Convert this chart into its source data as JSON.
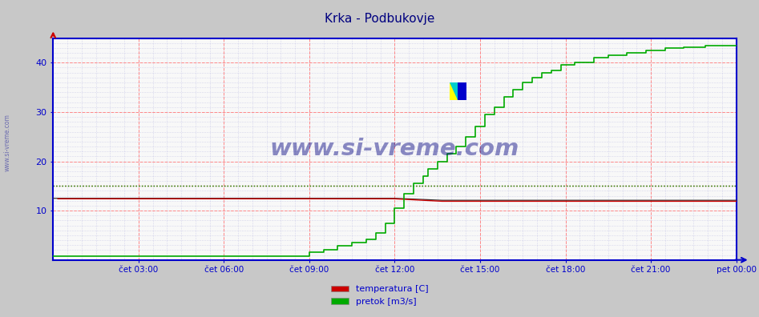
{
  "title": "Krka - Podbukovje",
  "title_color": "#000080",
  "title_fontsize": 11,
  "bg_color": "#c8c8c8",
  "plot_bg_color": "#f8f8f8",
  "ylim": [
    0,
    45
  ],
  "yticks": [
    10,
    20,
    30,
    40
  ],
  "xlim": [
    0,
    288
  ],
  "xtick_labels": [
    "čet 03:00",
    "čet 06:00",
    "čet 09:00",
    "čet 12:00",
    "čet 15:00",
    "čet 18:00",
    "čet 21:00",
    "pet 00:00"
  ],
  "xtick_positions": [
    36,
    72,
    108,
    144,
    180,
    216,
    252,
    288
  ],
  "temp_color": "#cc0000",
  "flow_color": "#00aa00",
  "height_color": "#333333",
  "temp_avg_val": 15.0,
  "flow_avg_val": 15.0,
  "watermark_text": "www.si-vreme.com",
  "watermark_color": "#000080",
  "legend_items": [
    "temperatura [C]",
    "pretok [m3/s]"
  ],
  "legend_colors": [
    "#cc0000",
    "#00aa00"
  ],
  "axis_color": "#0000cc",
  "side_label": "www.si-vreme.com"
}
